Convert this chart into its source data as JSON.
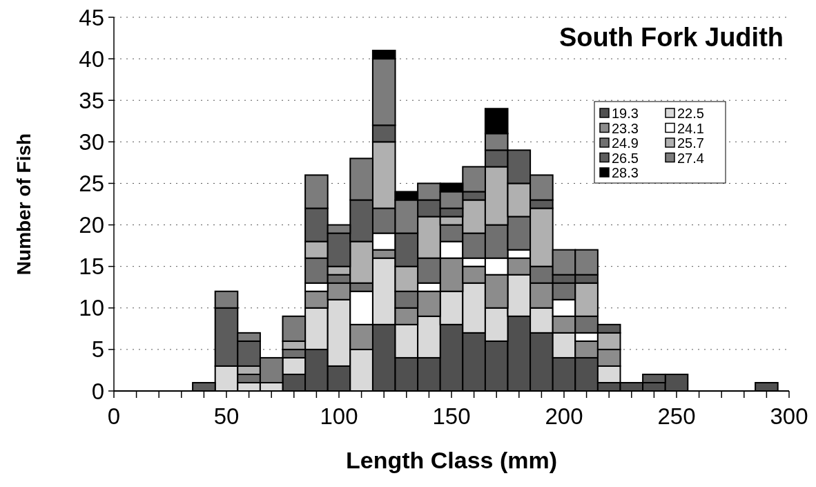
{
  "chart_data": {
    "type": "bar",
    "title": "South Fork Judith",
    "xlabel": "Length Class (mm)",
    "ylabel": "Number of Fish",
    "x": [
      40,
      50,
      60,
      70,
      80,
      90,
      100,
      110,
      120,
      130,
      140,
      150,
      160,
      170,
      180,
      190,
      200,
      210,
      220,
      230,
      240,
      250,
      260,
      270,
      280,
      290
    ],
    "stacked": true,
    "grid": "y",
    "legend": "top right",
    "xlim": [
      0,
      300
    ],
    "xticks": [
      0,
      {
        "value": 10,
        "label": null
      },
      {
        "value": 20,
        "label": null
      },
      {
        "value": 30,
        "label": null
      },
      {
        "value": 40,
        "label": null
      },
      50,
      {
        "value": 60,
        "label": null
      },
      {
        "value": 70,
        "label": null
      },
      {
        "value": 80,
        "label": null
      },
      {
        "value": 90,
        "label": null
      },
      100,
      {
        "value": 110,
        "label": null
      },
      {
        "value": 120,
        "label": null
      },
      {
        "value": 130,
        "label": null
      },
      {
        "value": 140,
        "label": null
      },
      150,
      {
        "value": 160,
        "label": null
      },
      {
        "value": 170,
        "label": null
      },
      {
        "value": 180,
        "label": null
      },
      {
        "value": 190,
        "label": null
      },
      200,
      {
        "value": 210,
        "label": null
      },
      {
        "value": 220,
        "label": null
      },
      {
        "value": 230,
        "label": null
      },
      {
        "value": 240,
        "label": null
      },
      250,
      {
        "value": 260,
        "label": null
      },
      {
        "value": 270,
        "label": null
      },
      {
        "value": 280,
        "label": null
      },
      {
        "value": 290,
        "label": null
      },
      300
    ],
    "ylim": [
      0,
      45
    ],
    "yticks": [
      0,
      5,
      10,
      15,
      20,
      25,
      30,
      35,
      40,
      45
    ],
    "series": [
      {
        "name": "19.3",
        "color": "#505050",
        "values": [
          0,
          0,
          0,
          0,
          2,
          5,
          3,
          0,
          8,
          4,
          4,
          8,
          7,
          6,
          9,
          7,
          4,
          4,
          1,
          1,
          1,
          2,
          0,
          0,
          0,
          1
        ]
      },
      {
        "name": "22.5",
        "color": "#d9d9d9",
        "values": [
          0,
          3,
          1,
          1,
          2,
          5,
          8,
          5,
          8,
          4,
          5,
          4,
          6,
          4,
          5,
          3,
          3,
          0,
          2,
          0,
          0,
          0,
          0,
          0,
          0,
          0
        ]
      },
      {
        "name": "23.3",
        "color": "#8c8c8c",
        "values": [
          0,
          0,
          0,
          0,
          0,
          2,
          2,
          3,
          1,
          2,
          3,
          4,
          2,
          4,
          2,
          3,
          2,
          2,
          2,
          0,
          0,
          0,
          0,
          0,
          0,
          0
        ]
      },
      {
        "name": "24.1",
        "color": "#ffffff",
        "values": [
          0,
          0,
          0,
          0,
          0,
          1,
          0,
          4,
          2,
          0,
          1,
          2,
          1,
          2,
          1,
          0,
          2,
          1,
          0,
          0,
          0,
          0,
          0,
          0,
          0,
          0
        ]
      },
      {
        "name": "24.9",
        "color": "#707070",
        "values": [
          0,
          0,
          1,
          0,
          1,
          3,
          1,
          1,
          3,
          2,
          3,
          2,
          3,
          4,
          4,
          2,
          2,
          2,
          0,
          0,
          0,
          0,
          0,
          0,
          0,
          0
        ]
      },
      {
        "name": "25.7",
        "color": "#b0b0b0",
        "values": [
          0,
          0,
          1,
          0,
          1,
          2,
          1,
          5,
          8,
          3,
          5,
          1,
          4,
          7,
          4,
          7,
          0,
          4,
          2,
          0,
          0,
          0,
          0,
          0,
          0,
          0
        ]
      },
      {
        "name": "26.5",
        "color": "#5c5c5c",
        "values": [
          1,
          7,
          3,
          0,
          0,
          4,
          4,
          5,
          2,
          4,
          2,
          1,
          1,
          2,
          4,
          1,
          1,
          1,
          1,
          0,
          1,
          0,
          0,
          0,
          0,
          0
        ]
      },
      {
        "name": "27.4",
        "color": "#7c7c7c",
        "values": [
          0,
          2,
          1,
          3,
          3,
          4,
          1,
          5,
          8,
          4,
          2,
          2,
          3,
          2,
          0,
          3,
          3,
          3,
          0,
          0,
          0,
          0,
          0,
          0,
          0,
          0
        ]
      },
      {
        "name": "28.3",
        "color": "#000000",
        "values": [
          0,
          0,
          0,
          0,
          0,
          0,
          0,
          0,
          1,
          1,
          0,
          1,
          0,
          3,
          0,
          0,
          0,
          0,
          0,
          0,
          0,
          0,
          0,
          0,
          0,
          0
        ]
      }
    ]
  }
}
